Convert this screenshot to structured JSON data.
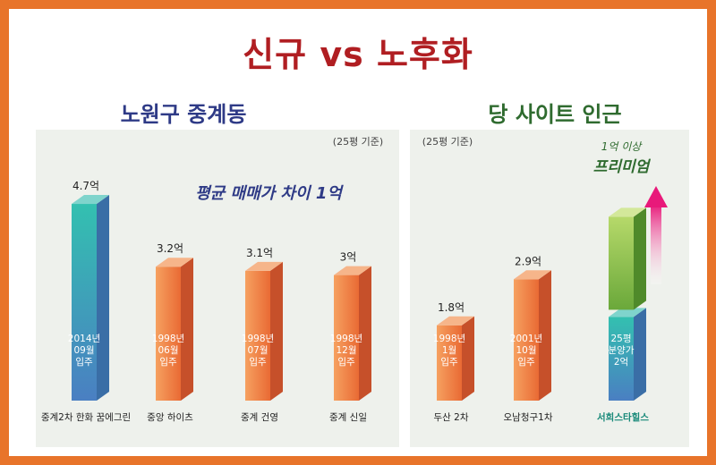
{
  "title": "신규 vs 노후화",
  "colors": {
    "frame": "#e8742a",
    "title": "#b01e22",
    "left_title": "#2e3a86",
    "right_title": "#2f6b2f",
    "premium": "#2f6b2f",
    "site_name": "#1a8a7a"
  },
  "chart_data": [
    {
      "type": "bar",
      "title": "노원구 중계동",
      "note": "(25평 기준)",
      "annotation": "평균 매매가 차이 1억",
      "categories": [
        "중계2차 한화 꿈에그린",
        "중앙 하이츠",
        "중계 건영",
        "중계 신일"
      ],
      "values": [
        4.7,
        3.2,
        3.1,
        3.0
      ],
      "value_labels": [
        "4.7억",
        "3.2억",
        "3.1억",
        "3억"
      ],
      "bar_text": [
        [
          "2014년",
          "09월",
          "입주"
        ],
        [
          "1998년",
          "06월",
          "입주"
        ],
        [
          "1998년",
          "07월",
          "입주"
        ],
        [
          "1998년",
          "12월",
          "입주"
        ]
      ],
      "bar_color": [
        "teal",
        "orange",
        "orange",
        "orange"
      ]
    },
    {
      "type": "bar",
      "title": "당 사이트 인근",
      "note": "(25평 기준)",
      "categories": [
        "두산 2차",
        "오남청구1차",
        "서희스타힐스"
      ],
      "values": [
        1.8,
        2.9,
        2.0
      ],
      "value_labels": [
        "1.8억",
        "2.9억",
        "2.0억"
      ],
      "bar_text": [
        [
          "1998년",
          "1월",
          "입주"
        ],
        [
          "2001년",
          "10월",
          "입주"
        ],
        [
          "25평",
          "분양가",
          "2억"
        ]
      ],
      "bar_color": [
        "orange",
        "orange",
        "teal"
      ],
      "premium": {
        "value": 1.0,
        "label_top": "1억 이상",
        "label_main": "프리미엄"
      }
    }
  ]
}
